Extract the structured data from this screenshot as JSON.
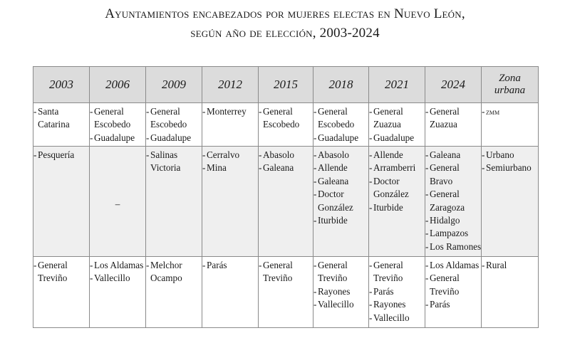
{
  "title": {
    "line1": "Ayuntamientos encabezados por mujeres electas en Nuevo León,",
    "line2": "según año de elección, 2003-2024"
  },
  "headers": [
    "2003",
    "2006",
    "2009",
    "2012",
    "2015",
    "2018",
    "2021",
    "2024"
  ],
  "zona_header": [
    "Zona",
    "urbana"
  ],
  "rows": [
    {
      "cells": [
        [
          [
            "Santa",
            "Catarina"
          ]
        ],
        [
          [
            "General",
            "Escobedo"
          ],
          [
            "Guadalupe"
          ]
        ],
        [
          [
            "General",
            "Escobedo"
          ],
          [
            "Guadalupe"
          ]
        ],
        [
          [
            "Monterrey"
          ]
        ],
        [
          [
            "General",
            "Escobedo"
          ]
        ],
        [
          [
            "General",
            "Escobedo"
          ],
          [
            "Guadalupe"
          ]
        ],
        [
          [
            "General",
            "Zuazua"
          ],
          [
            "Guadalupe"
          ]
        ],
        [
          [
            "General",
            "Zuazua"
          ]
        ]
      ],
      "zona": [
        [
          "zmm"
        ]
      ]
    },
    {
      "cells": [
        [
          [
            "Pesquería"
          ]
        ],
        [],
        [
          [
            "Salinas",
            "Victoria"
          ]
        ],
        [
          [
            "Cerralvo"
          ],
          [
            "Mina"
          ]
        ],
        [
          [
            "Abasolo"
          ],
          [
            "Galeana"
          ]
        ],
        [
          [
            "Abasolo"
          ],
          [
            "Allende"
          ],
          [
            "Galeana"
          ],
          [
            "Doctor",
            "González"
          ],
          [
            "Iturbide"
          ]
        ],
        [
          [
            "Allende"
          ],
          [
            "Arramberri"
          ],
          [
            "Doctor",
            "González"
          ],
          [
            "Iturbide"
          ]
        ],
        [
          [
            "Galeana"
          ],
          [
            "General",
            "Bravo"
          ],
          [
            "General",
            "Zaragoza"
          ],
          [
            "Hidalgo"
          ],
          [
            "Lampazos"
          ],
          [
            "Los Ramones"
          ]
        ]
      ],
      "zona": [
        [
          "Urbano"
        ],
        [
          "Semiurbano"
        ]
      ]
    },
    {
      "cells": [
        [
          [
            "General",
            "Treviño"
          ]
        ],
        [
          [
            "Los Aldamas"
          ],
          [
            "Vallecillo"
          ]
        ],
        [
          [
            "Melchor",
            "Ocampo"
          ]
        ],
        [
          [
            "Parás"
          ]
        ],
        [
          [
            "General",
            "Treviño"
          ]
        ],
        [
          [
            "General",
            "Treviño"
          ],
          [
            "Rayones"
          ],
          [
            "Vallecillo"
          ]
        ],
        [
          [
            "General",
            "Treviño"
          ],
          [
            "Parás"
          ],
          [
            "Rayones"
          ],
          [
            "Vallecillo"
          ]
        ],
        [
          [
            "Los Aldamas"
          ],
          [
            "General",
            "Treviño"
          ],
          [
            "Parás"
          ]
        ]
      ],
      "zona": [
        [
          "Rural"
        ]
      ]
    }
  ],
  "empty_marker": "–",
  "dash_marker": "-"
}
